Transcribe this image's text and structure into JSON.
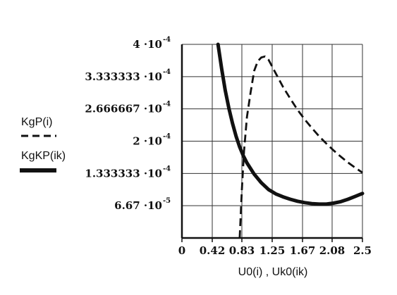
{
  "chart_data": {
    "type": "line",
    "xlabel": "U0(i) , Uk0(ik)",
    "xlim": [
      0,
      2.5
    ],
    "ylim": [
      0,
      0.0004
    ],
    "x_ticks": [
      {
        "value": 0,
        "label": "0"
      },
      {
        "value": 0.42,
        "label": "0.42"
      },
      {
        "value": 0.83,
        "label": "0.83"
      },
      {
        "value": 1.25,
        "label": "1.25"
      },
      {
        "value": 1.67,
        "label": "1.67"
      },
      {
        "value": 2.08,
        "label": "2.08"
      },
      {
        "value": 2.5,
        "label": "2.5"
      }
    ],
    "y_ticks": [
      {
        "value": 6.67e-05,
        "mantissa": "6.67",
        "base": "10",
        "exponent": "-5"
      },
      {
        "value": 0.000133333,
        "mantissa": "1.333333",
        "base": "10",
        "exponent": "-4"
      },
      {
        "value": 0.0002,
        "mantissa": "2",
        "base": "10",
        "exponent": "-4"
      },
      {
        "value": 0.000266667,
        "mantissa": "2.666667",
        "base": "10",
        "exponent": "-4"
      },
      {
        "value": 0.000333333,
        "mantissa": "3.333333",
        "base": "10",
        "exponent": "-4"
      },
      {
        "value": 0.0004,
        "mantissa": "4",
        "base": "10",
        "exponent": "-4"
      }
    ],
    "grid": true,
    "legend_position": "left",
    "series": [
      {
        "name": "KgP(i)",
        "style": "dashed",
        "color": "#111111",
        "x": [
          0.8,
          0.83,
          0.86,
          0.9,
          0.95,
          1.0,
          1.05,
          1.1,
          1.15,
          1.2,
          1.3,
          1.4,
          1.5,
          1.6,
          1.7,
          1.8,
          1.9,
          2.0,
          2.1,
          2.2,
          2.3,
          2.4,
          2.5
        ],
        "y": [
          0.0,
          0.0001,
          0.00018,
          0.00025,
          0.0003,
          0.000345,
          0.000365,
          0.000373,
          0.000375,
          0.000368,
          0.00034,
          0.000312,
          0.000288,
          0.000265,
          0.000245,
          0.000227,
          0.00021,
          0.000195,
          0.000181,
          0.000168,
          0.000156,
          0.000145,
          0.000135
        ]
      },
      {
        "name": "KgKP(ik)",
        "style": "solid",
        "color": "#111111",
        "x": [
          0.5,
          0.55,
          0.6,
          0.65,
          0.7,
          0.75,
          0.8,
          0.85,
          0.9,
          1.0,
          1.1,
          1.2,
          1.3,
          1.4,
          1.5,
          1.6,
          1.7,
          1.8,
          1.9,
          2.0,
          2.1,
          2.2,
          2.3,
          2.4,
          2.5
        ],
        "y": [
          0.0004,
          0.00035,
          0.000305,
          0.000268,
          0.000237,
          0.00021,
          0.000188,
          0.00017,
          0.000155,
          0.000132,
          0.000114,
          0.0001,
          9.1e-05,
          8.5e-05,
          8e-05,
          7.6e-05,
          7.3e-05,
          7.1e-05,
          7e-05,
          7e-05,
          7.2e-05,
          7.5e-05,
          8e-05,
          8.6e-05,
          9.2e-05
        ]
      }
    ]
  }
}
